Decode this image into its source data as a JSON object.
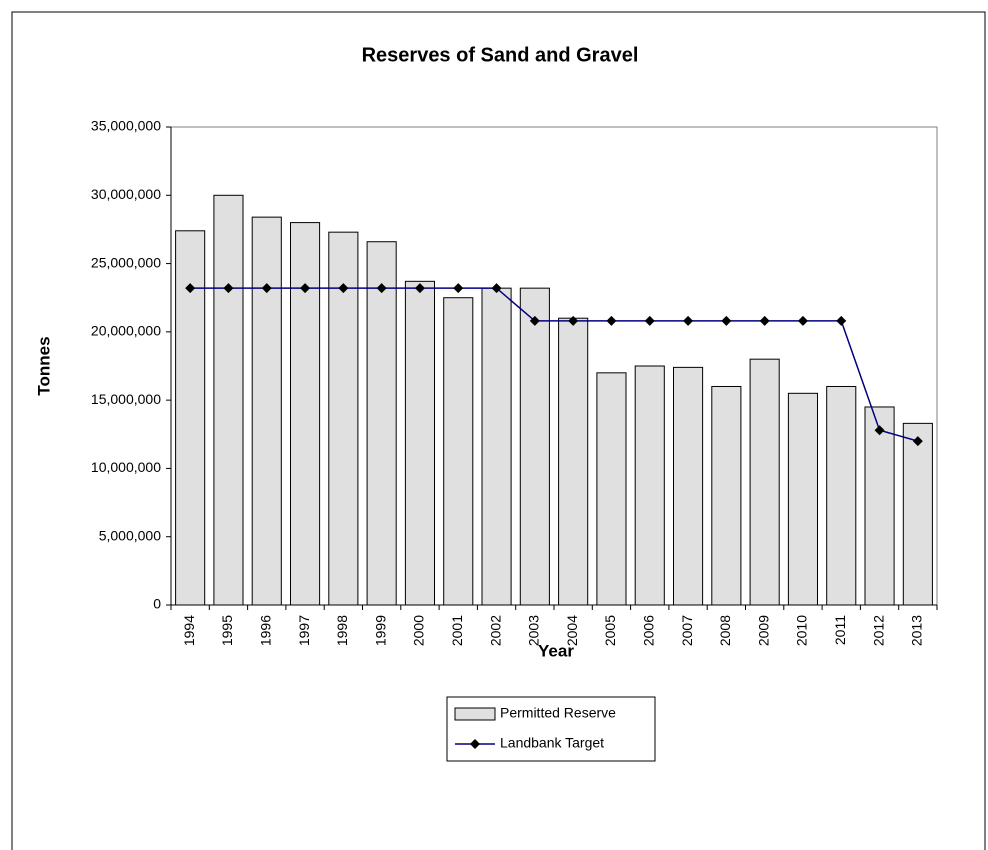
{
  "chart_data": {
    "type": "bar",
    "title": "Reserves of Sand and Gravel",
    "x_label": "Year",
    "y_label": "Tonnes",
    "categories": [
      "1994",
      "1995",
      "1996",
      "1997",
      "1998",
      "1999",
      "2000",
      "2001",
      "2002",
      "2003",
      "2004",
      "2005",
      "2006",
      "2007",
      "2008",
      "2009",
      "2010",
      "2011",
      "2012",
      "2013"
    ],
    "series": [
      {
        "name": "Permitted Reserve",
        "type": "bar",
        "color": "#e0e0e0",
        "values": [
          27400000,
          30000000,
          28400000,
          28000000,
          27300000,
          26600000,
          23700000,
          22500000,
          23200000,
          23200000,
          21000000,
          17000000,
          17500000,
          17400000,
          16000000,
          18000000,
          15500000,
          16000000,
          14500000,
          13300000
        ]
      },
      {
        "name": "Landbank Target",
        "type": "line",
        "color": "#000080",
        "values": [
          23200000,
          23200000,
          23200000,
          23200000,
          23200000,
          23200000,
          23200000,
          23200000,
          23200000,
          20800000,
          20800000,
          20800000,
          20800000,
          20800000,
          20800000,
          20800000,
          20800000,
          20800000,
          12800000,
          12000000
        ]
      }
    ],
    "ylim": [
      0,
      35000000
    ],
    "yticks": [
      0,
      {
        "value": 5000000,
        "label": "5,000,000"
      },
      {
        "value": 10000000,
        "label": "10,000,000"
      },
      {
        "value": 15000000,
        "label": "15,000,000"
      },
      {
        "value": 20000000,
        "label": "20,000,000"
      },
      {
        "value": 25000000,
        "label": "25,000,000"
      },
      {
        "value": 30000000,
        "label": "30,000,000"
      },
      {
        "value": 35000000,
        "label": "35,000,000"
      }
    ],
    "grid": false
  }
}
